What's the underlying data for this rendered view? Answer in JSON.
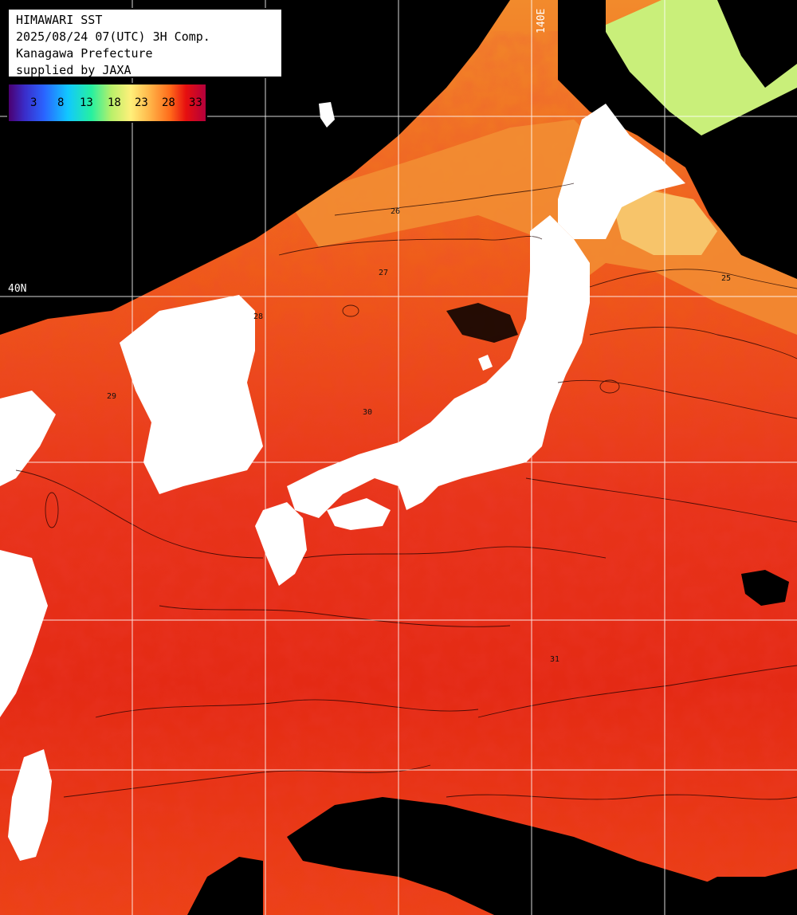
{
  "info": {
    "line1": "HIMAWARI SST",
    "line2": "2025/08/24 07(UTC) 3H Comp.",
    "line3": "Kanagawa Prefecture",
    "line4": "supplied by JAXA"
  },
  "colorbar": {
    "ticks": [
      "3",
      "8",
      "13",
      "18",
      "23",
      "28",
      "33"
    ],
    "colors": [
      "#4b0070",
      "#2a64ff",
      "#11c8ff",
      "#26f0a0",
      "#fff07a",
      "#ff6a1a",
      "#b4003c"
    ]
  },
  "grid_labels": {
    "lon": "140E",
    "lat": "40N"
  },
  "contour_labels": [
    "25",
    "26",
    "27",
    "28",
    "29",
    "30",
    "31"
  ],
  "palette": {
    "land": "#ffffff",
    "no_data": "#000000",
    "sst_28": "#f26a1f",
    "sst_29": "#ef4a18",
    "sst_30": "#e82c12",
    "sst_31": "#d0100c",
    "sst_23_25": "#f7c96a",
    "sst_cold": "#c8f07a",
    "grid": "#ffffff"
  }
}
